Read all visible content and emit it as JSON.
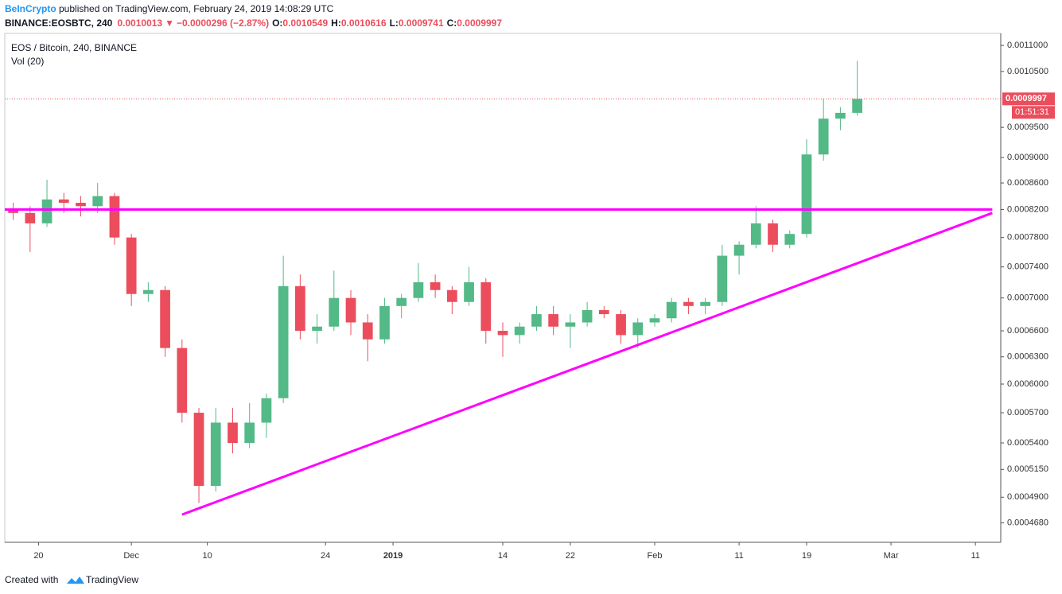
{
  "header": {
    "author": "BeInCrypto",
    "published": " published on TradingView.com, February 24, 2019 14:08:29 UTC",
    "symbol": "BINANCE:EOSBTC, 240",
    "last": "0.0010013",
    "change": "−0.0000296 (−2.87%)",
    "ohlc": [
      {
        "label": "O:",
        "value": "0.0010549"
      },
      {
        "label": "H:",
        "value": "0.0010616"
      },
      {
        "label": "L:",
        "value": "0.0009741"
      },
      {
        "label": "C:",
        "value": "0.0009997"
      }
    ]
  },
  "chart_data": {
    "type": "candlestick",
    "title": "EOS / Bitcoin, 240, BINANCE",
    "subtitle": "Vol (20)",
    "log_scale": true,
    "up_color": "#53b987",
    "down_color": "#eb4d5c",
    "x": [
      "2018-11-16",
      "2018-11-18",
      "2018-11-20",
      "2018-11-22",
      "2018-11-24",
      "2018-11-26",
      "2018-11-28",
      "2018-11-30",
      "2018-12-02",
      "2018-12-04",
      "2018-12-06",
      "2018-12-08",
      "2018-12-10",
      "2018-12-12",
      "2018-12-14",
      "2018-12-16",
      "2018-12-18",
      "2018-12-20",
      "2018-12-22",
      "2018-12-24",
      "2018-12-26",
      "2018-12-28",
      "2018-12-30",
      "2019-01-01",
      "2019-01-03",
      "2019-01-05",
      "2019-01-07",
      "2019-01-09",
      "2019-01-11",
      "2019-01-13",
      "2019-01-15",
      "2019-01-17",
      "2019-01-19",
      "2019-01-21",
      "2019-01-23",
      "2019-01-25",
      "2019-01-27",
      "2019-01-29",
      "2019-01-31",
      "2019-02-02",
      "2019-02-04",
      "2019-02-06",
      "2019-02-08",
      "2019-02-10",
      "2019-02-12",
      "2019-02-14",
      "2019-02-16",
      "2019-02-18",
      "2019-02-20",
      "2019-02-22",
      "2019-02-24"
    ],
    "open": [
      0.00082,
      0.000815,
      0.0008,
      0.000835,
      0.00083,
      0.000825,
      0.00084,
      0.00078,
      0.000705,
      0.00071,
      0.00064,
      0.00057,
      0.0005,
      0.00056,
      0.00054,
      0.00056,
      0.000585,
      0.000715,
      0.00066,
      0.000665,
      0.0007,
      0.00067,
      0.00065,
      0.00069,
      0.0007,
      0.00072,
      0.00071,
      0.000695,
      0.00072,
      0.00066,
      0.000655,
      0.000665,
      0.00068,
      0.000665,
      0.00067,
      0.000685,
      0.00068,
      0.000655,
      0.00067,
      0.000675,
      0.000695,
      0.00069,
      0.000695,
      0.000755,
      0.00077,
      0.0008,
      0.00077,
      0.000785,
      0.000905,
      0.000965,
      0.000975
    ],
    "high": [
      0.00083,
      0.000825,
      0.000865,
      0.000845,
      0.00084,
      0.00086,
      0.000845,
      0.000785,
      0.00072,
      0.000715,
      0.00065,
      0.000575,
      0.000575,
      0.000575,
      0.00058,
      0.00059,
      0.000755,
      0.00073,
      0.00068,
      0.000735,
      0.00071,
      0.00068,
      0.0007,
      0.000705,
      0.000745,
      0.00073,
      0.000715,
      0.00074,
      0.000725,
      0.00067,
      0.00067,
      0.00069,
      0.00069,
      0.00068,
      0.000695,
      0.00069,
      0.000685,
      0.000675,
      0.00068,
      0.0007,
      0.0007,
      0.0007,
      0.00077,
      0.000775,
      0.000825,
      0.000805,
      0.00079,
      0.00093,
      0.001,
      0.000985,
      0.00107
    ],
    "low": [
      0.000805,
      0.00076,
      0.000795,
      0.000815,
      0.00081,
      0.000815,
      0.00077,
      0.00069,
      0.000695,
      0.00063,
      0.00056,
      0.000485,
      0.000495,
      0.00053,
      0.000535,
      0.000545,
      0.00058,
      0.00065,
      0.000645,
      0.00066,
      0.000655,
      0.000625,
      0.000645,
      0.000675,
      0.000695,
      0.0007,
      0.00068,
      0.00069,
      0.000645,
      0.00063,
      0.000645,
      0.00066,
      0.000655,
      0.00064,
      0.000665,
      0.000675,
      0.000645,
      0.00064,
      0.000665,
      0.00067,
      0.00068,
      0.00068,
      0.00069,
      0.00073,
      0.000765,
      0.00076,
      0.000765,
      0.00078,
      0.000895,
      0.000945,
      0.00097
    ],
    "close": [
      0.000815,
      0.0008,
      0.000835,
      0.00083,
      0.000825,
      0.00084,
      0.00078,
      0.000705,
      0.00071,
      0.00064,
      0.00057,
      0.0005,
      0.00056,
      0.00054,
      0.00056,
      0.000585,
      0.000715,
      0.00066,
      0.000665,
      0.0007,
      0.00067,
      0.00065,
      0.00069,
      0.0007,
      0.00072,
      0.00071,
      0.000695,
      0.00072,
      0.00066,
      0.000655,
      0.000665,
      0.00068,
      0.000665,
      0.00067,
      0.000685,
      0.00068,
      0.000655,
      0.00067,
      0.000675,
      0.000695,
      0.00069,
      0.000695,
      0.000755,
      0.00077,
      0.0008,
      0.00077,
      0.000785,
      0.000905,
      0.000965,
      0.000975,
      0.0009997
    ],
    "xlim": [
      "2018-11-16",
      "2019-03-14"
    ],
    "xticks": [
      {
        "value": "2018-11-20",
        "label": "20"
      },
      {
        "value": "2018-12-01",
        "label": "Dec"
      },
      {
        "value": "2018-12-10",
        "label": "10"
      },
      {
        "value": "2018-12-24",
        "label": "24"
      },
      {
        "value": "2019-01-01",
        "label": "2019"
      },
      {
        "value": "2019-01-14",
        "label": "14"
      },
      {
        "value": "2019-01-22",
        "label": "22"
      },
      {
        "value": "2019-02-01",
        "label": "Feb"
      },
      {
        "value": "2019-02-11",
        "label": "11"
      },
      {
        "value": "2019-02-19",
        "label": "19"
      },
      {
        "value": "2019-03-01",
        "label": "Mar"
      },
      {
        "value": "2019-03-11",
        "label": "11"
      }
    ],
    "ylim": [
      0.000452,
      0.001124
    ],
    "yticks": [
      {
        "value": 0.0011,
        "label": "0.0011000"
      },
      {
        "value": 0.00105,
        "label": "0.0010500"
      },
      {
        "value": 0.00095,
        "label": "0.0009500"
      },
      {
        "value": 0.0009,
        "label": "0.0009000"
      },
      {
        "value": 0.00086,
        "label": "0.0008600"
      },
      {
        "value": 0.00082,
        "label": "0.0008200"
      },
      {
        "value": 0.00078,
        "label": "0.0007800"
      },
      {
        "value": 0.00074,
        "label": "0.0007400"
      },
      {
        "value": 0.0007,
        "label": "0.0007000"
      },
      {
        "value": 0.00066,
        "label": "0.0006600"
      },
      {
        "value": 0.00063,
        "label": "0.0006300"
      },
      {
        "value": 0.0006,
        "label": "0.0006000"
      },
      {
        "value": 0.00057,
        "label": "0.0005700"
      },
      {
        "value": 0.00054,
        "label": "0.0005400"
      },
      {
        "value": 0.000515,
        "label": "0.0005150"
      },
      {
        "value": 0.00049,
        "label": "0.0004900"
      },
      {
        "value": 0.000468,
        "label": "0.0004680"
      }
    ],
    "last_price": {
      "value": 0.0009997,
      "label": "0.0009997",
      "color": "#eb4d5c"
    },
    "countdown": "01:51:31",
    "lines": [
      {
        "color": "#ff00ff",
        "points": [
          {
            "x": "2018-11-16",
            "y": 0.00082
          },
          {
            "x": "2019-03-13",
            "y": 0.00082
          }
        ]
      },
      {
        "color": "#ff00ff",
        "points": [
          {
            "x": "2018-12-07",
            "y": 0.000475
          },
          {
            "x": "2019-03-13",
            "y": 0.000815
          }
        ]
      }
    ]
  },
  "footer": {
    "text": "Created with",
    "brand": "TradingView"
  }
}
